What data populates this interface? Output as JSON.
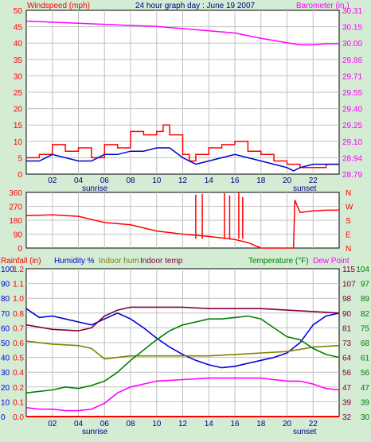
{
  "chart_data": [
    {
      "type": "line",
      "title": "24 hour graph day : June 19 2007",
      "y_left_label": "Windspeed (mph)",
      "y_right_label": "Barometer (in.)",
      "y_left_ticks": [
        "0",
        "5",
        "10",
        "15",
        "20",
        "25",
        "30",
        "35",
        "40",
        "45",
        "50"
      ],
      "y_right_ticks": [
        "28.79",
        "28.94",
        "29.10",
        "29.25",
        "29.40",
        "29.55",
        "29.71",
        "29.86",
        "30.00",
        "30.15",
        "30.31"
      ],
      "ylim_left": [
        0,
        50
      ],
      "ylim_right": [
        28.79,
        30.31
      ],
      "x_ticks": [
        "02",
        "04",
        "06",
        "08",
        "10",
        "12",
        "14",
        "16",
        "18",
        "20",
        "22"
      ],
      "x_annotations": [
        "sunrise",
        "sunset"
      ],
      "xlim": [
        0,
        24
      ],
      "grid": true,
      "colors": {
        "gust": "#ff0000",
        "wind": "#0000cc",
        "barometer": "#ff00ff"
      },
      "series": [
        {
          "key": "barometer",
          "axis": "right",
          "x": [
            0,
            2,
            4,
            6,
            8,
            10,
            12,
            14,
            16,
            18,
            19,
            20,
            21,
            22,
            23,
            24
          ],
          "values": [
            30.21,
            30.2,
            30.19,
            30.18,
            30.17,
            30.16,
            30.14,
            30.12,
            30.1,
            30.05,
            30.03,
            30.01,
            29.99,
            29.99,
            30.0,
            30.0
          ]
        },
        {
          "key": "gust",
          "axis": "left",
          "x": [
            0,
            1,
            2,
            3,
            4,
            5,
            6,
            7,
            8,
            9,
            10,
            10.5,
            11,
            12,
            12.5,
            13,
            14,
            15,
            16,
            17,
            18,
            19,
            20,
            21,
            22,
            23,
            24
          ],
          "values": [
            5,
            6,
            9,
            7,
            8,
            5,
            9,
            8,
            13,
            12,
            13,
            15,
            12,
            6,
            4,
            6,
            8,
            9,
            10,
            7,
            6,
            4,
            3,
            2,
            2,
            3,
            3
          ]
        },
        {
          "key": "wind",
          "axis": "left",
          "x": [
            0,
            1,
            2,
            3,
            4,
            5,
            6,
            7,
            8,
            9,
            10,
            11,
            12,
            13,
            14,
            15,
            16,
            17,
            18,
            19,
            20,
            20.5,
            21,
            22,
            23,
            24
          ],
          "values": [
            4,
            4,
            6,
            5,
            4,
            4,
            6,
            6,
            7,
            7,
            8,
            8,
            5,
            3,
            4,
            5,
            6,
            5,
            4,
            3,
            2,
            1,
            2,
            3,
            3,
            3
          ]
        }
      ]
    },
    {
      "type": "line",
      "y_left_ticks": [
        "0",
        "90",
        "180",
        "270",
        "360"
      ],
      "y_right_ticks": [
        "N",
        "E",
        "S",
        "W",
        "N"
      ],
      "ylim": [
        0,
        360
      ],
      "xlim": [
        0,
        24
      ],
      "colors": {
        "direction": "#ff0000"
      },
      "series": [
        {
          "key": "direction",
          "x": [
            0,
            2,
            4,
            6,
            8,
            10,
            12,
            14,
            16,
            17,
            18,
            19,
            20,
            20.5,
            20.6,
            21,
            22,
            23,
            24
          ],
          "values": [
            210,
            215,
            205,
            165,
            150,
            110,
            90,
            75,
            55,
            35,
            0,
            0,
            0,
            0,
            310,
            230,
            240,
            245,
            245
          ]
        }
      ],
      "spikes": [
        {
          "x": 13.0,
          "value": 345
        },
        {
          "x": 13.5,
          "value": 350
        },
        {
          "x": 15.2,
          "value": 355
        },
        {
          "x": 15.6,
          "value": 340
        },
        {
          "x": 16.3,
          "value": 360
        },
        {
          "x": 16.6,
          "value": 330
        }
      ]
    },
    {
      "type": "line",
      "labels": {
        "rainfall": "Rainfall (in)",
        "humidity": "Humidity %",
        "indoor_hum": "Indoor hum",
        "indoor_temp": "Indoor temp",
        "temperature": "Temperature (°F)",
        "dew_point": "Dew Point"
      },
      "y_ticks_rain": [
        "0.0",
        "0.1",
        "0.2",
        "0.4",
        "0.5",
        "0.6",
        "0.7",
        "0.8",
        "1.0",
        "1.1",
        "1.2"
      ],
      "y_ticks_hum": [
        "0",
        "10",
        "20",
        "30",
        "40",
        "50",
        "60",
        "70",
        "80",
        "90",
        "100"
      ],
      "y_ticks_temp_a": [
        "32",
        "39",
        "47",
        "56",
        "64",
        "73",
        "81",
        "90",
        "98",
        "107",
        "115"
      ],
      "y_ticks_temp_b": [
        "30",
        "39",
        "47",
        "56",
        "61",
        "68",
        "75",
        "82",
        "89",
        "97",
        "104"
      ],
      "ylim_hum": [
        0,
        100
      ],
      "xlim": [
        0,
        24
      ],
      "x_ticks": [
        "02",
        "04",
        "06",
        "08",
        "10",
        "12",
        "14",
        "16",
        "18",
        "20",
        "22"
      ],
      "x_annotations": [
        "sunrise",
        "sunset"
      ],
      "colors": {
        "humidity": "#0000dd",
        "indoor_hum": "#808000",
        "indoor_temp": "#800040",
        "temperature": "#008000",
        "dew_point": "#ff00ff",
        "rainfall": "#ff0000"
      },
      "series": [
        {
          "key": "humidity",
          "x": [
            0,
            1,
            2,
            3,
            4,
            5,
            6,
            7,
            8,
            9,
            10,
            11,
            12,
            13,
            14,
            15,
            16,
            17,
            18,
            19,
            20,
            21,
            22,
            23,
            24
          ],
          "values": [
            73,
            67,
            68,
            66,
            64,
            62,
            66,
            70,
            66,
            60,
            53,
            47,
            42,
            38,
            35,
            33,
            34,
            36,
            38,
            40,
            43,
            50,
            62,
            68,
            70
          ]
        },
        {
          "key": "indoor_hum",
          "x": [
            0,
            2,
            4,
            5,
            6,
            7,
            8,
            10,
            12,
            14,
            16,
            18,
            20,
            22,
            24
          ],
          "values": [
            51,
            49,
            48,
            46,
            39,
            40,
            41,
            41,
            41,
            41,
            42,
            43,
            44,
            47,
            48
          ]
        },
        {
          "key": "indoor_temp",
          "x": [
            0,
            2,
            4,
            5,
            6,
            7,
            8,
            10,
            12,
            14,
            16,
            18,
            20,
            22,
            24
          ],
          "values": [
            62,
            59,
            58,
            60,
            68,
            72,
            74,
            74,
            74,
            73,
            73,
            73,
            72,
            71,
            70
          ]
        },
        {
          "key": "temperature",
          "x": [
            0,
            2,
            3,
            4,
            5,
            6,
            7,
            8,
            9,
            10,
            11,
            12,
            13,
            14,
            15,
            16,
            17,
            18,
            19,
            20,
            21,
            22,
            23,
            24
          ],
          "values": [
            16,
            18,
            20,
            19,
            21,
            24,
            30,
            38,
            45,
            52,
            58,
            62,
            64,
            66,
            66,
            67,
            68,
            66,
            60,
            54,
            52,
            46,
            42,
            40
          ]
        },
        {
          "key": "dew_point",
          "x": [
            0,
            1,
            2,
            3,
            4,
            5,
            6,
            7,
            8,
            9,
            10,
            12,
            14,
            16,
            18,
            19,
            20,
            21,
            22,
            23,
            24
          ],
          "values": [
            6,
            5,
            5,
            4,
            4,
            5,
            9,
            16,
            20,
            22,
            24,
            25,
            26,
            26,
            26,
            25,
            24,
            24,
            22,
            19,
            18
          ]
        },
        {
          "key": "rainfall",
          "x": [
            0,
            24
          ],
          "values": [
            0,
            0
          ]
        }
      ]
    }
  ]
}
